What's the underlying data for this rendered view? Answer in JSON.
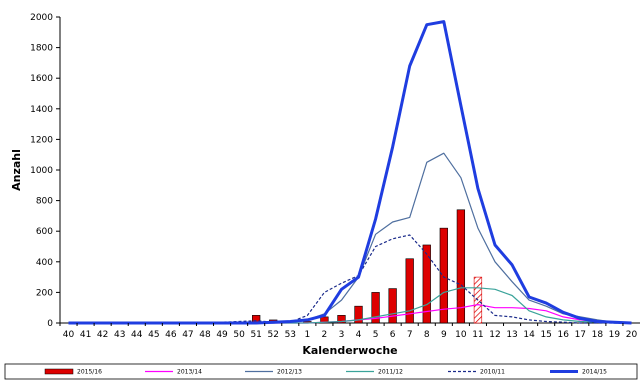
{
  "chart_data": {
    "type": "bar",
    "title": "",
    "xlabel": "Kalenderwoche",
    "ylabel": "Anzahl",
    "ylim": [
      0,
      2000
    ],
    "yticks": [
      0,
      200,
      400,
      600,
      800,
      1000,
      1200,
      1400,
      1600,
      1800,
      2000
    ],
    "grid": false,
    "legend_position": "bottom",
    "categories": [
      "40",
      "41",
      "42",
      "43",
      "44",
      "45",
      "46",
      "47",
      "48",
      "49",
      "50",
      "51",
      "52",
      "53",
      "1",
      "2",
      "3",
      "4",
      "5",
      "6",
      "7",
      "8",
      "9",
      "10",
      "11",
      "12",
      "13",
      "14",
      "15",
      "16",
      "17",
      "18",
      "19",
      "20"
    ],
    "series": [
      {
        "name": "2015/16",
        "kind": "bar",
        "color": "#dd0000",
        "values": [
          0,
          0,
          0,
          0,
          0,
          0,
          0,
          0,
          0,
          0,
          0,
          50,
          20,
          10,
          10,
          40,
          50,
          110,
          200,
          225,
          420,
          510,
          620,
          740,
          300,
          null,
          null,
          null,
          null,
          null,
          null,
          null,
          null,
          null
        ],
        "hatched": [
          "11"
        ]
      },
      {
        "name": "2013/14",
        "kind": "line",
        "color": "#ff00ff",
        "values": [
          0,
          0,
          0,
          0,
          0,
          0,
          0,
          0,
          0,
          0,
          0,
          0,
          0,
          0,
          0,
          5,
          10,
          20,
          30,
          45,
          60,
          75,
          90,
          100,
          120,
          100,
          100,
          95,
          80,
          40,
          20,
          10,
          5,
          0
        ]
      },
      {
        "name": "2012/13",
        "kind": "line",
        "color": "#4f6f9f",
        "values": [
          0,
          0,
          0,
          0,
          0,
          0,
          0,
          0,
          0,
          0,
          0,
          0,
          0,
          5,
          20,
          60,
          150,
          300,
          580,
          660,
          690,
          1050,
          1110,
          950,
          620,
          400,
          270,
          150,
          110,
          60,
          40,
          20,
          5,
          0
        ]
      },
      {
        "name": "2011/12",
        "kind": "line",
        "color": "#3aa39a",
        "values": [
          0,
          0,
          0,
          0,
          0,
          0,
          0,
          0,
          0,
          0,
          0,
          0,
          0,
          0,
          0,
          5,
          10,
          20,
          40,
          60,
          80,
          120,
          200,
          230,
          230,
          220,
          180,
          80,
          40,
          20,
          10,
          5,
          0,
          0
        ]
      },
      {
        "name": "2010/11",
        "kind": "line",
        "color": "#1a2a8a",
        "dashed": true,
        "values": [
          0,
          0,
          0,
          0,
          0,
          0,
          0,
          0,
          0,
          5,
          10,
          15,
          5,
          5,
          50,
          200,
          260,
          310,
          500,
          550,
          575,
          450,
          300,
          250,
          150,
          50,
          40,
          20,
          10,
          5,
          0,
          0,
          0,
          0
        ]
      },
      {
        "name": "2014/15",
        "kind": "line",
        "color": "#1f3de0",
        "width": 3,
        "values": [
          0,
          0,
          0,
          0,
          0,
          0,
          0,
          0,
          0,
          0,
          0,
          0,
          5,
          10,
          20,
          50,
          220,
          300,
          680,
          1150,
          1680,
          1950,
          1970,
          1420,
          880,
          510,
          380,
          170,
          130,
          70,
          30,
          10,
          5,
          0
        ]
      }
    ]
  }
}
